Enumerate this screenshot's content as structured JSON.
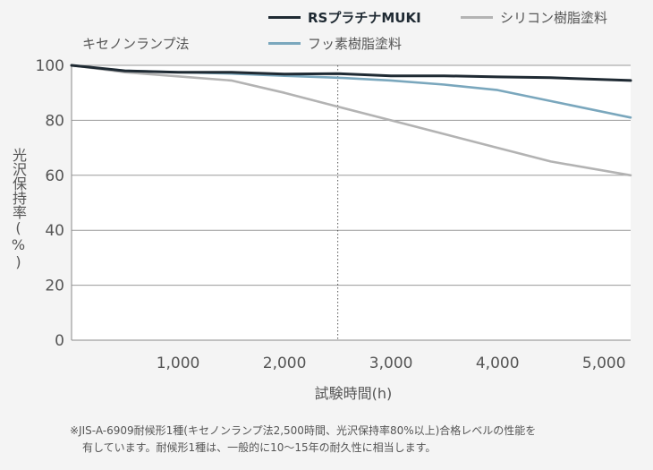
{
  "chart_data": {
    "type": "line",
    "method_label": "キセノンランプ法",
    "xlabel": "試験時間(h)",
    "ylabel": "光沢保持率(%)",
    "x_ticks": [
      1000,
      2000,
      3000,
      4000,
      5000
    ],
    "x_tick_labels": [
      "1,000",
      "2,000",
      "3,000",
      "4,000",
      "5,000"
    ],
    "y_ticks": [
      0,
      20,
      40,
      60,
      80,
      100
    ],
    "y_tick_labels": [
      "0",
      "20",
      "40",
      "60",
      "80",
      "100"
    ],
    "xlim": [
      0,
      5250
    ],
    "ylim": [
      0,
      100
    ],
    "grid": true,
    "reference_line_x": 2500,
    "legend_position": "top-right",
    "series": [
      {
        "name": "RSプラチナMUKI",
        "color": "#1f2a33",
        "bold": true,
        "x": [
          0,
          500,
          1000,
          1500,
          2000,
          2500,
          3000,
          3500,
          4000,
          4500,
          5250
        ],
        "y": [
          100,
          98,
          97.5,
          97.5,
          96.8,
          97,
          96.2,
          96.2,
          95.8,
          95.5,
          94.5
        ]
      },
      {
        "name": "シリコン樹脂塗料",
        "color": "#b3b3b3",
        "bold": false,
        "x": [
          0,
          500,
          1000,
          1500,
          2000,
          2500,
          3000,
          3500,
          4000,
          4500,
          5250
        ],
        "y": [
          100,
          97.5,
          96,
          94.5,
          90,
          85,
          80,
          75,
          70,
          65,
          60
        ]
      },
      {
        "name": "フッ素樹脂塗料",
        "color": "#7aa7bd",
        "bold": false,
        "x": [
          0,
          500,
          1000,
          1500,
          2000,
          2500,
          3000,
          3500,
          4000,
          4500,
          5250
        ],
        "y": [
          100,
          98,
          97.5,
          97,
          96.2,
          95.5,
          94.5,
          93,
          91,
          87,
          81
        ]
      }
    ]
  },
  "footnote": {
    "line1": "※JIS-A-6909耐候形1種(キセノンランプ法2,500時間、光沢保持率80%以上)合格レベルの性能を",
    "line2": "有しています。耐候形1種は、一般的に10〜15年の耐久性に相当します。"
  }
}
